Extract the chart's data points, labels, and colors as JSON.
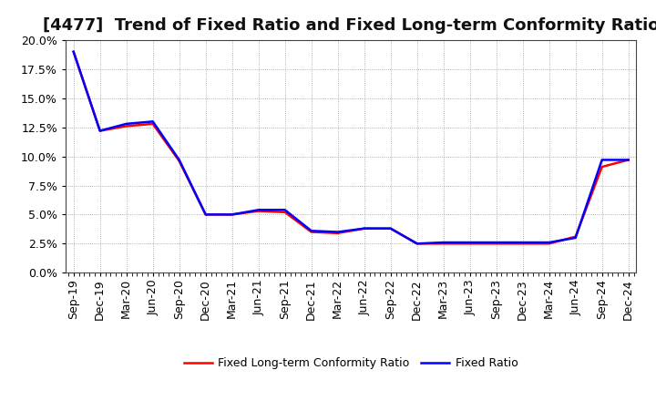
{
  "title": "[4477]  Trend of Fixed Ratio and Fixed Long-term Conformity Ratio",
  "x_labels": [
    "Sep-19",
    "Dec-19",
    "Mar-20",
    "Jun-20",
    "Sep-20",
    "Dec-20",
    "Mar-21",
    "Jun-21",
    "Sep-21",
    "Dec-21",
    "Mar-22",
    "Jun-22",
    "Sep-22",
    "Dec-22",
    "Mar-23",
    "Jun-23",
    "Sep-23",
    "Dec-23",
    "Mar-24",
    "Jun-24",
    "Sep-24",
    "Dec-24"
  ],
  "fixed_ratio": [
    0.19,
    0.122,
    0.128,
    0.13,
    0.097,
    0.05,
    0.05,
    0.054,
    0.054,
    0.036,
    0.035,
    0.038,
    0.038,
    0.025,
    0.026,
    0.026,
    0.026,
    0.026,
    0.026,
    0.03,
    0.097,
    0.097
  ],
  "fixed_lt_ratio": [
    0.19,
    0.122,
    0.126,
    0.128,
    0.096,
    0.05,
    0.05,
    0.053,
    0.052,
    0.035,
    0.034,
    0.038,
    0.038,
    0.025,
    0.025,
    0.025,
    0.025,
    0.025,
    0.025,
    0.031,
    0.091,
    0.097
  ],
  "line_color_fixed": "#0000FF",
  "line_color_lt": "#FF0000",
  "ylim": [
    0.0,
    0.2
  ],
  "yticks": [
    0.0,
    0.025,
    0.05,
    0.075,
    0.1,
    0.125,
    0.15,
    0.175,
    0.2
  ],
  "legend_fixed": "Fixed Ratio",
  "legend_lt": "Fixed Long-term Conformity Ratio",
  "background_color": "#FFFFFF",
  "grid_color": "#999999",
  "box_color": "#444444",
  "title_fontsize": 13,
  "tick_fontsize": 9,
  "legend_fontsize": 9,
  "linewidth": 1.8
}
